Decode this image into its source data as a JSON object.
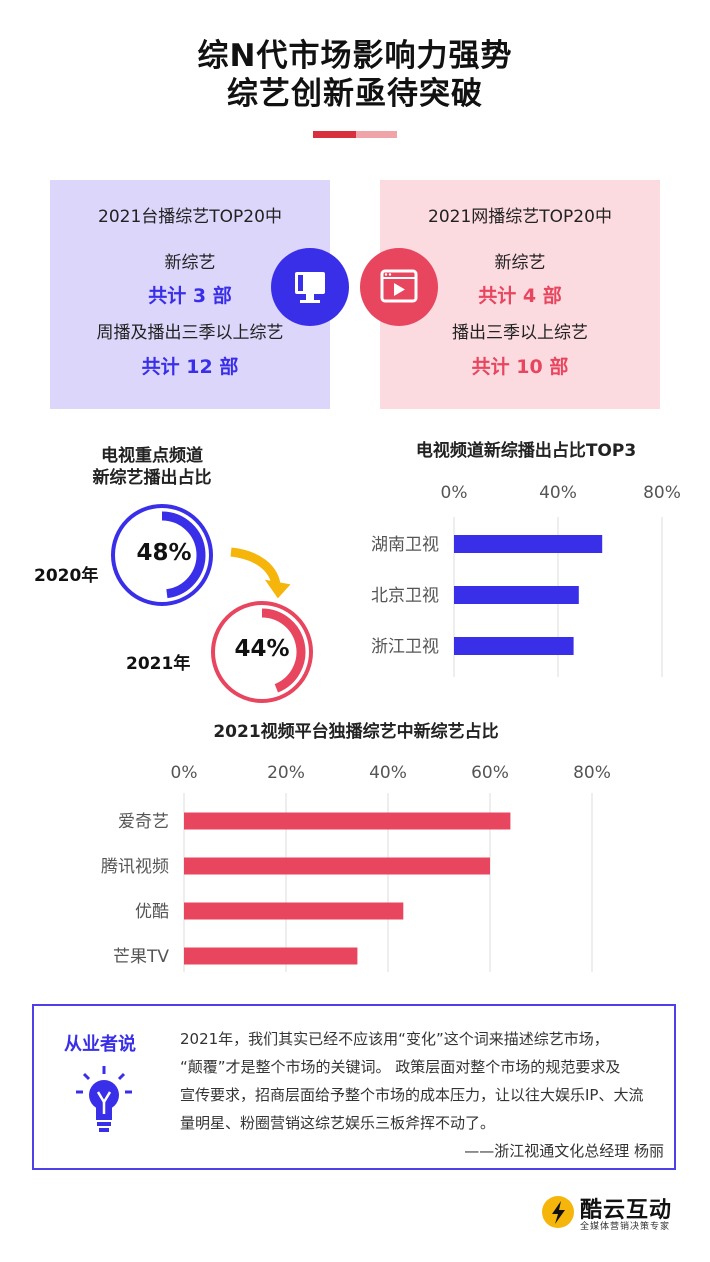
{
  "page": {
    "title_line1": "综N代市场影响力强势",
    "title_line2": "综艺创新亟待突破"
  },
  "colors": {
    "blue": "#3a2fe8",
    "red": "#e8455e",
    "blue_bg": "#dcd6fa",
    "red_bg": "#fbdbe0"
  },
  "panels": {
    "left": {
      "heading": "2021台播综艺TOP20中",
      "new_label": "新综艺",
      "new_count": "共计 3 部",
      "old_label": "周播及播出三季以上综艺",
      "old_count": "共计 12 部",
      "icon": "tv-monitor-icon"
    },
    "right": {
      "heading": "2021网播综艺TOP20中",
      "new_label": "新综艺",
      "new_count": "共计 4 部",
      "old_label": "播出三季以上综艺",
      "old_count": "共计 10 部",
      "icon": "video-play-icon"
    }
  },
  "ring_section": {
    "title_line1": "电视重点频道",
    "title_line2": "新综艺播出占比",
    "items": [
      {
        "year": "2020年",
        "value_label": "48%",
        "value": 48,
        "color": "#3a2fe8"
      },
      {
        "year": "2021年",
        "value_label": "44%",
        "value": 44,
        "color": "#e8455e"
      }
    ]
  },
  "chart_data": [
    {
      "type": "bar",
      "orientation": "horizontal",
      "title": "电视频道新综播出占比TOP3",
      "categories": [
        "湖南卫视",
        "北京卫视",
        "浙江卫视"
      ],
      "values": [
        57,
        48,
        46
      ],
      "xlim": [
        0,
        80
      ],
      "ticks": [
        "0%",
        "40%",
        "80%"
      ],
      "tick_values": [
        0,
        40,
        80
      ],
      "color": "#3a2fe8",
      "grid": true
    },
    {
      "type": "bar",
      "orientation": "horizontal",
      "title": "2021视频平台独播综艺中新综艺占比",
      "categories": [
        "爱奇艺",
        "腾讯视频",
        "优酷",
        "芒果TV"
      ],
      "values": [
        64,
        60,
        43,
        34
      ],
      "xlim": [
        0,
        80
      ],
      "ticks": [
        "0%",
        "20%",
        "40%",
        "60%",
        "80%"
      ],
      "tick_values": [
        0,
        20,
        40,
        60,
        80
      ],
      "color": "#e8455e",
      "grid": true
    }
  ],
  "quote": {
    "label": "从业者说",
    "icon": "lightbulb-icon",
    "lines": [
      "2021年，我们其实已经不应该用“变化”这个词来描述综艺市场，",
      "“颠覆”才是整个市场的关键词。 政策层面对整个市场的规范要求及",
      "宣传要求，招商层面给予整个市场的成本压力，让以往大娱乐IP、大流",
      "量明星、粉圈营销这综艺娱乐三板斧挥不动了。"
    ],
    "attribution": "——浙江视通文化总经理  杨丽"
  },
  "brand": {
    "name": "酷云互动",
    "tagline": "全媒体营销决策专家",
    "logo": "kuyun-logo"
  }
}
